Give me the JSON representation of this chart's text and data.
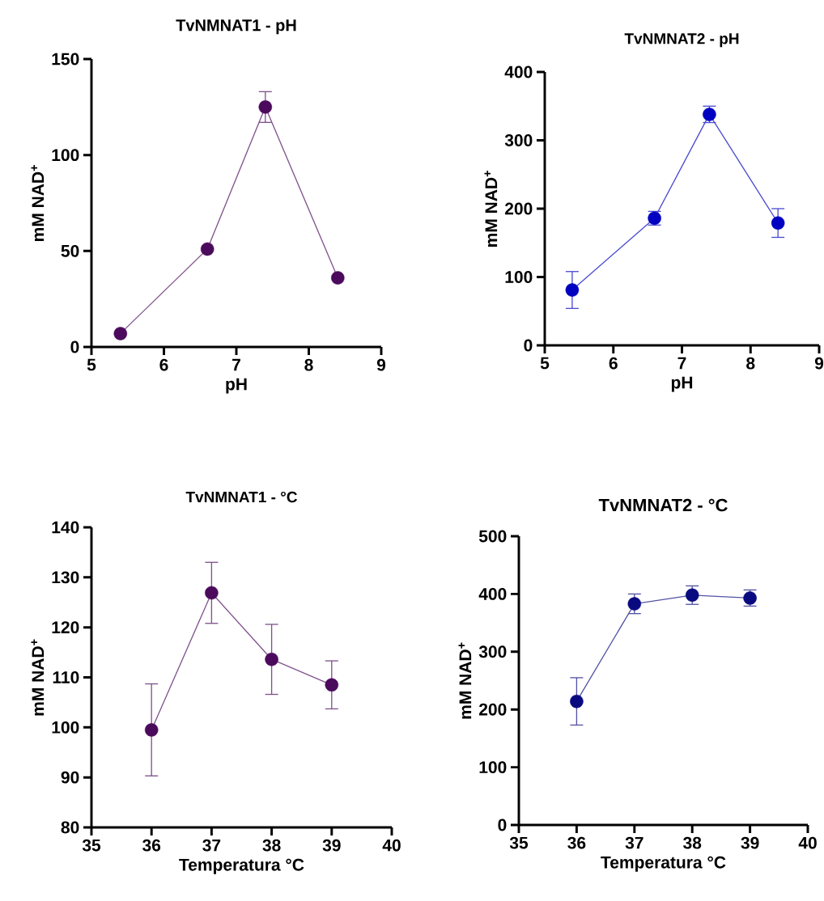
{
  "chart_data": [
    {
      "type": "line",
      "title": "TvNMNAT1 - pH",
      "xlabel": "pH",
      "ylabel": "mM NAD$^{+}$",
      "x": [
        5.4,
        6.6,
        7.4,
        8.4
      ],
      "xlim": [
        5,
        9
      ],
      "xticks": [
        5,
        6,
        7,
        8,
        9
      ],
      "ylim": [
        0,
        150
      ],
      "yticks": [
        0,
        50,
        100,
        150
      ],
      "marker": "circle",
      "series": [
        {
          "color": "#4b0a5c",
          "values": [
            7,
            51,
            125,
            36
          ],
          "errors": [
            null,
            null,
            8,
            null
          ]
        }
      ]
    },
    {
      "type": "line",
      "title": "TvNMNAT2 - pH",
      "xlabel": "pH",
      "ylabel": "mM NAD$^{+}$",
      "x": [
        5.4,
        6.6,
        7.4,
        8.4
      ],
      "xlim": [
        5,
        9
      ],
      "xticks": [
        5,
        6,
        7,
        8,
        9
      ],
      "ylim": [
        0,
        400
      ],
      "yticks": [
        0,
        100,
        200,
        300,
        400
      ],
      "marker": "circle",
      "series": [
        {
          "color": "#0000c0",
          "values": [
            81,
            186,
            338,
            179
          ],
          "errors": [
            27,
            10,
            12,
            21
          ]
        }
      ]
    },
    {
      "type": "line",
      "title": "TvNMNAT1 - °C",
      "xlabel": "Temperatura °C",
      "ylabel": "mM NAD$^{+}$",
      "x": [
        36,
        37,
        38,
        39
      ],
      "xlim": [
        35,
        40
      ],
      "xticks": [
        35,
        36,
        37,
        38,
        39,
        40
      ],
      "ylim": [
        80,
        140
      ],
      "yticks": [
        80,
        90,
        100,
        110,
        120,
        130,
        140
      ],
      "marker": "circle",
      "series": [
        {
          "color": "#4b0a5c",
          "values": [
            99.5,
            126.9,
            113.6,
            108.5
          ],
          "errors": [
            9.2,
            6.1,
            7,
            4.8
          ]
        }
      ]
    },
    {
      "type": "line",
      "title": "TvNMNAT2 - °C",
      "xlabel": "Temperatura °C",
      "ylabel": "mM NAD$^{+}$",
      "x": [
        36,
        37,
        38,
        39
      ],
      "xlim": [
        35,
        40
      ],
      "xticks": [
        35,
        36,
        37,
        38,
        39,
        40
      ],
      "ylim": [
        0,
        500
      ],
      "yticks": [
        0,
        100,
        200,
        300,
        400,
        500
      ],
      "marker": "circle",
      "series": [
        {
          "color": "#0a0a80",
          "values": [
            214,
            383,
            398,
            393
          ],
          "errors": [
            41,
            17,
            16,
            14
          ]
        }
      ]
    }
  ]
}
